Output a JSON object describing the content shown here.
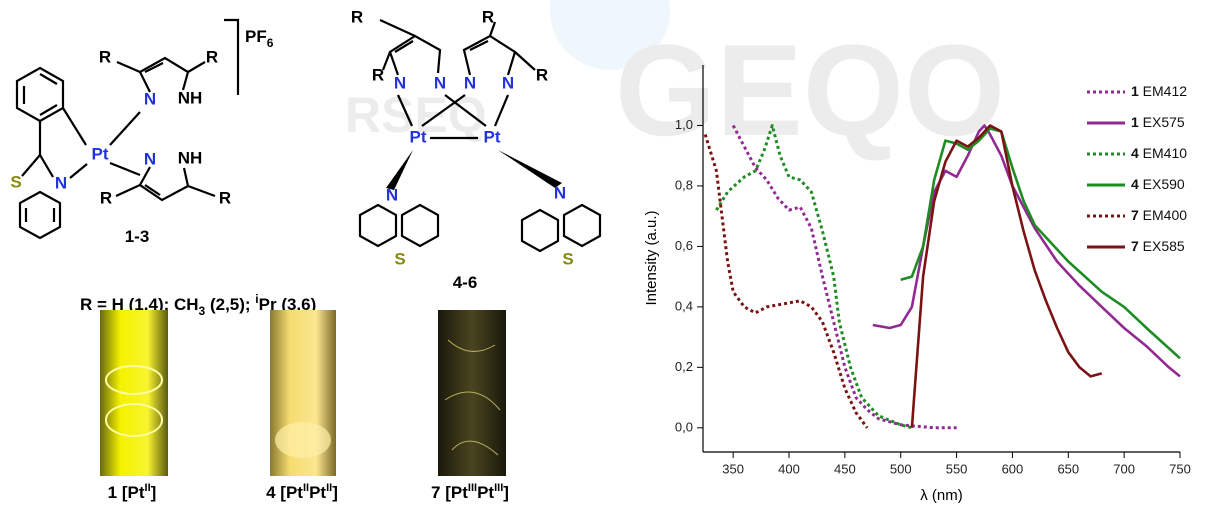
{
  "watermark": {
    "logo": "GEQO",
    "society": "RSEQ"
  },
  "structures": [
    {
      "atoms": [
        "R",
        "R",
        "N",
        "NH",
        "Pt",
        "N",
        "NH",
        "R",
        "R",
        "N",
        "S"
      ],
      "counterion": [
        "PF",
        "6"
      ],
      "label": "1-3"
    },
    {
      "atoms": [
        "R",
        "R",
        "R",
        "R",
        "N",
        "N",
        "N",
        "N",
        "Pt",
        "Pt",
        "N",
        "N",
        "S",
        "S"
      ],
      "label": "4-6"
    }
  ],
  "substituents": [
    "R = H (1,4); CH",
    "3",
    " (2,5); ",
    "i",
    "Pr (3,6)"
  ],
  "photos": [
    {
      "number": "1",
      "caption": [
        "[Pt",
        "II",
        "]"
      ]
    },
    {
      "number": "4",
      "caption": [
        "[Pt",
        "II",
        "Pt",
        "II",
        "]"
      ]
    },
    {
      "number": "7",
      "caption": [
        "[Pt",
        "III",
        "Pt",
        "III",
        "]"
      ]
    }
  ],
  "chart_data": {
    "type": "line",
    "x_label": "λ (nm)",
    "y_label": "Intensity (a.u.)",
    "xlim": [
      323,
      750
    ],
    "ylim": [
      -0.08,
      1.2
    ],
    "xticks": [
      350,
      400,
      450,
      500,
      550,
      600,
      650,
      700,
      750
    ],
    "yticks": [
      {
        "value": 0,
        "label": "0,0"
      },
      {
        "value": 0.2,
        "label": "0,2"
      },
      {
        "value": 0.4,
        "label": "0,4"
      },
      {
        "value": 0.6,
        "label": "0,6"
      },
      {
        "value": 0.8,
        "label": "0,8"
      },
      {
        "value": 1.0,
        "label": "1,0"
      }
    ],
    "series": [
      {
        "name": "1 EM412",
        "color": "#922a92",
        "dashed": true,
        "x": [
          350,
          360,
          370,
          380,
          390,
          400,
          410,
          420,
          430,
          440,
          450,
          460,
          470,
          480,
          500,
          530,
          550
        ],
        "values": [
          1.0,
          0.93,
          0.86,
          0.82,
          0.76,
          0.72,
          0.73,
          0.66,
          0.5,
          0.35,
          0.2,
          0.1,
          0.06,
          0.03,
          0.01,
          0.0,
          0.0
        ]
      },
      {
        "name": "1 EX575",
        "color": "#922a92",
        "dashed": false,
        "x": [
          475,
          490,
          500,
          510,
          520,
          530,
          540,
          550,
          560,
          570,
          575,
          580,
          590,
          600,
          620,
          640,
          660,
          680,
          700,
          720,
          740,
          750
        ],
        "values": [
          0.34,
          0.33,
          0.34,
          0.4,
          0.6,
          0.78,
          0.85,
          0.83,
          0.9,
          0.98,
          1.0,
          0.97,
          0.9,
          0.8,
          0.66,
          0.55,
          0.47,
          0.4,
          0.33,
          0.27,
          0.2,
          0.17
        ]
      },
      {
        "name": "4 EM410",
        "color": "#1e8c22",
        "dashed": true,
        "x": [
          335,
          345,
          360,
          370,
          378,
          385,
          392,
          400,
          410,
          420,
          430,
          440,
          445,
          455,
          465,
          480,
          500,
          510
        ],
        "values": [
          0.72,
          0.78,
          0.83,
          0.85,
          0.92,
          1.0,
          0.9,
          0.83,
          0.82,
          0.78,
          0.65,
          0.5,
          0.35,
          0.2,
          0.1,
          0.04,
          0.01,
          0.0
        ]
      },
      {
        "name": "4 EX590",
        "color": "#1e8c22",
        "dashed": false,
        "x": [
          500,
          510,
          520,
          530,
          540,
          550,
          560,
          570,
          580,
          590,
          600,
          610,
          620,
          630,
          650,
          680,
          700,
          720,
          750
        ],
        "values": [
          0.49,
          0.5,
          0.6,
          0.82,
          0.95,
          0.94,
          0.92,
          0.95,
          0.99,
          0.98,
          0.86,
          0.75,
          0.67,
          0.63,
          0.55,
          0.45,
          0.4,
          0.33,
          0.23
        ]
      },
      {
        "name": "7 EM400",
        "color": "#7a1414",
        "dashed": true,
        "x": [
          325,
          335,
          340,
          345,
          350,
          360,
          370,
          380,
          395,
          410,
          420,
          430,
          440,
          450,
          460,
          470
        ],
        "values": [
          0.97,
          0.85,
          0.7,
          0.55,
          0.45,
          0.4,
          0.38,
          0.4,
          0.41,
          0.42,
          0.4,
          0.35,
          0.25,
          0.13,
          0.05,
          0.0
        ]
      },
      {
        "name": "7 EX585",
        "color": "#7a1414",
        "dashed": false,
        "x": [
          510,
          512,
          520,
          530,
          540,
          550,
          560,
          570,
          580,
          590,
          600,
          610,
          620,
          630,
          640,
          650,
          660,
          670,
          680
        ],
        "values": [
          0.0,
          0.1,
          0.5,
          0.75,
          0.88,
          0.95,
          0.93,
          0.96,
          1.0,
          0.98,
          0.8,
          0.65,
          0.52,
          0.42,
          0.33,
          0.25,
          0.2,
          0.17,
          0.18
        ]
      }
    ]
  }
}
